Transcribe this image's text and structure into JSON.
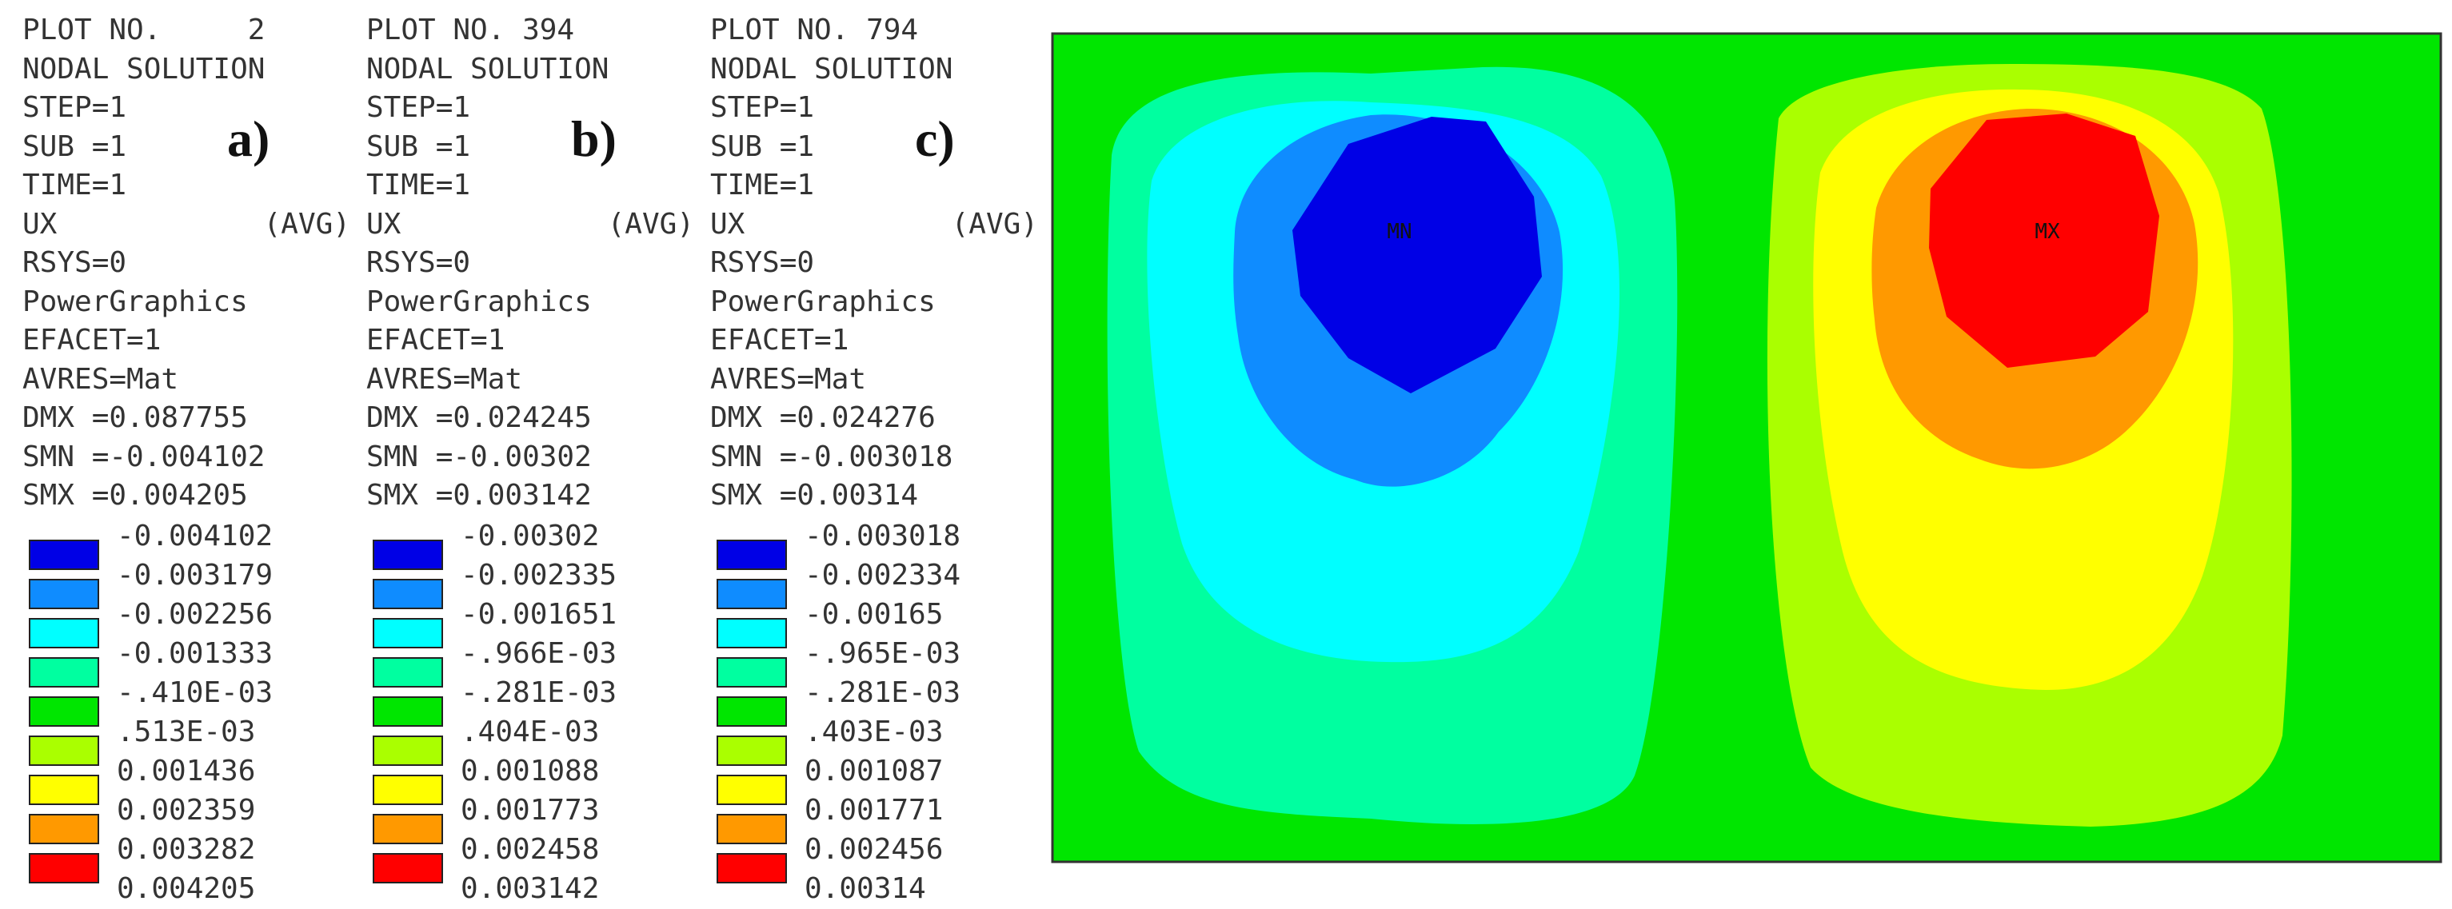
{
  "panels": [
    {
      "letter": "a)",
      "header": [
        "PLOT NO.     2",
        "NODAL SOLUTION",
        "STEP=1",
        "SUB =1",
        "TIME=1",
        "UX",
        "RSYS=0",
        "PowerGraphics",
        "EFACET=1",
        "AVRES=Mat",
        "DMX =0.087755",
        "SMN =-0.004102",
        "SMX =0.004205"
      ],
      "avg": "(AVG)",
      "scale": [
        "-0.004102",
        "-0.003179",
        "-0.002256",
        "-0.001333",
        "-.410E-03",
        ".513E-03",
        "0.001436",
        "0.002359",
        "0.003282",
        "0.004205"
      ]
    },
    {
      "letter": "b)",
      "header": [
        "PLOT NO. 394",
        "NODAL SOLUTION",
        "STEP=1",
        "SUB =1",
        "TIME=1",
        "UX",
        "RSYS=0",
        "PowerGraphics",
        "EFACET=1",
        "AVRES=Mat",
        "DMX =0.024245",
        "SMN =-0.00302",
        "SMX =0.003142"
      ],
      "avg": "(AVG)",
      "scale": [
        "-0.00302",
        "-0.002335",
        "-0.001651",
        "-.966E-03",
        "-.281E-03",
        ".404E-03",
        "0.001088",
        "0.001773",
        "0.002458",
        "0.003142"
      ]
    },
    {
      "letter": "c)",
      "header": [
        "PLOT NO. 794",
        "NODAL SOLUTION",
        "STEP=1",
        "SUB =1",
        "TIME=1",
        "UX",
        "RSYS=0",
        "PowerGraphics",
        "EFACET=1",
        "AVRES=Mat",
        "DMX =0.024276",
        "SMN =-0.003018",
        "SMX =0.00314"
      ],
      "avg": "(AVG)",
      "scale": [
        "-0.003018",
        "-0.002334",
        "-0.00165",
        "-.965E-03",
        "-.281E-03",
        ".403E-03",
        "0.001087",
        "0.001771",
        "0.002456",
        "0.00314"
      ]
    }
  ],
  "colors": [
    "#0000e6",
    "#0f8cff",
    "#00ffff",
    "#00ffa0",
    "#00e600",
    "#aaff00",
    "#ffff00",
    "#ff9900",
    "#ff0000",
    "#ff0000"
  ],
  "plot": {
    "min_marker": "MN",
    "max_marker": "MX"
  }
}
